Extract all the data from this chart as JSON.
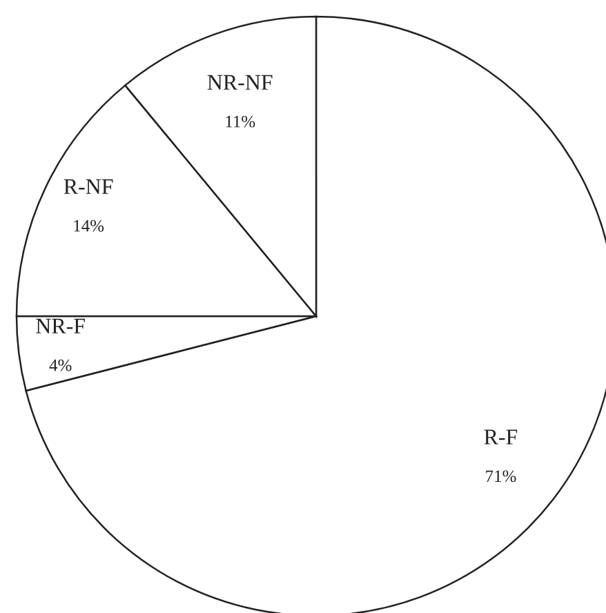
{
  "chart_data": {
    "type": "pie",
    "categories": [
      "R-F",
      "NR-F",
      "R-NF",
      "NR-NF"
    ],
    "values": [
      71,
      4,
      14,
      11
    ],
    "value_labels": [
      "71%",
      "4%",
      "14%",
      "11%"
    ],
    "colors": [
      "#ffffff",
      "#ffffff",
      "#ffffff",
      "#ffffff"
    ],
    "legend": false
  }
}
